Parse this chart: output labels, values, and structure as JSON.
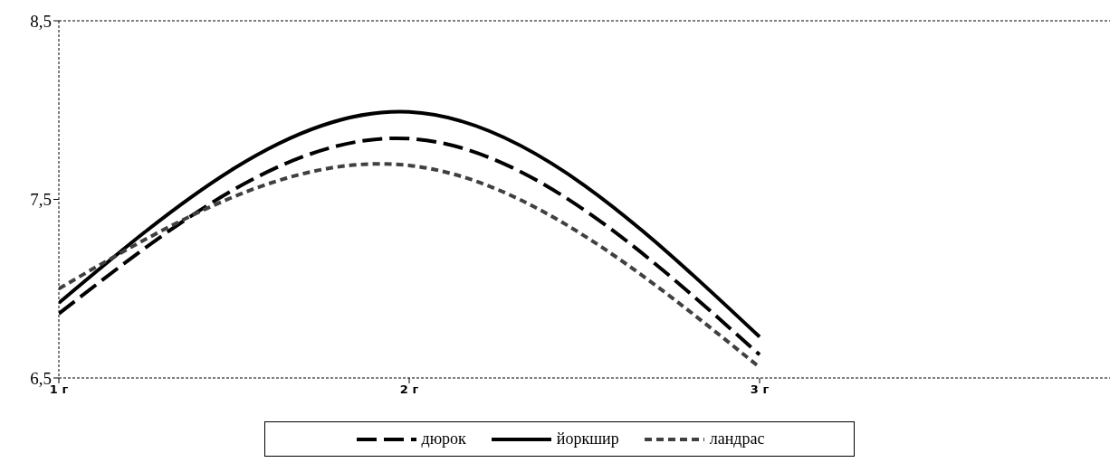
{
  "chart_data": {
    "type": "line",
    "categories": [
      "1 г",
      "2 г",
      "3 г",
      null
    ],
    "series": [
      {
        "name": "дюрок",
        "color": "#000000",
        "line_style": "dashed",
        "values": [
          6.86,
          7.84,
          6.63,
          null
        ]
      },
      {
        "name": "йоркшир",
        "color": "#000000",
        "line_style": "solid",
        "values": [
          6.92,
          7.99,
          6.73,
          null
        ]
      },
      {
        "name": "ландрас",
        "color": "#404040",
        "line_style": "dotted",
        "values": [
          7.0,
          7.69,
          6.56,
          null
        ]
      }
    ],
    "ylim": [
      6.5,
      8.5
    ],
    "yticks": [
      {
        "value": 6.5,
        "label": "6,5"
      },
      {
        "value": 7.5,
        "label": "7,5"
      },
      {
        "value": 8.5,
        "label": "8,5"
      }
    ],
    "legend": "bottom",
    "marker": "none"
  }
}
